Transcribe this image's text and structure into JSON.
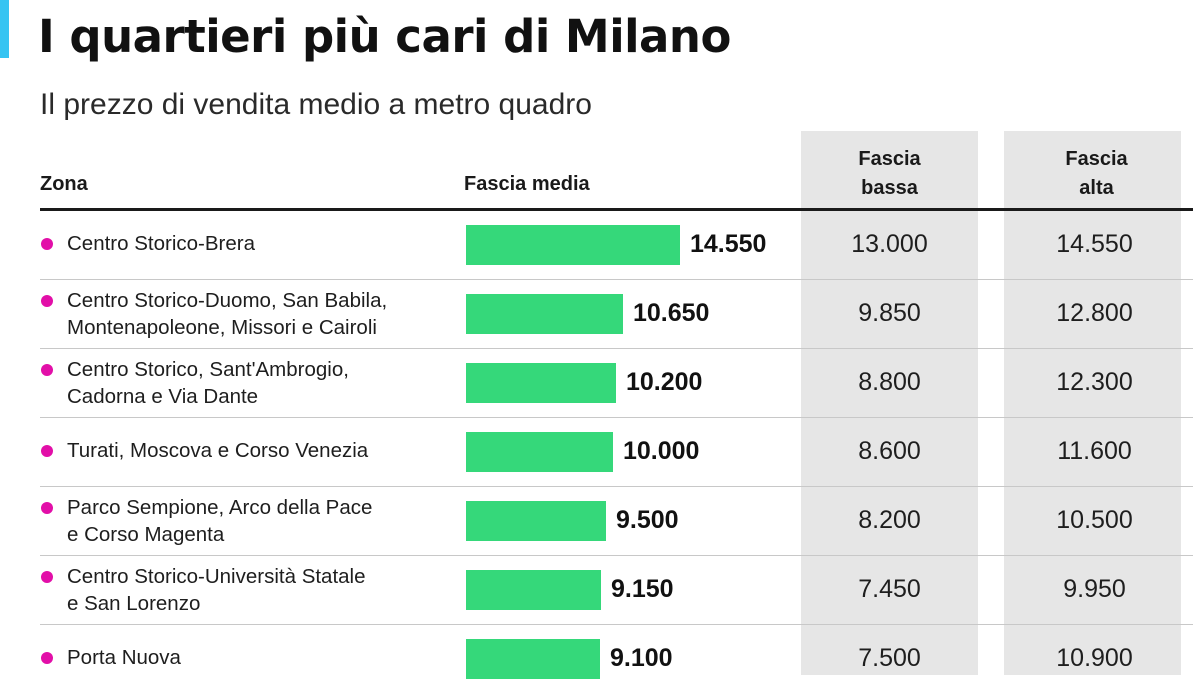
{
  "title": "I quartieri più cari di Milano",
  "subtitle": "Il prezzo di vendita medio a metro quadro",
  "colors": {
    "accent": "#35c4f2",
    "bar": "#35d87a",
    "dot": "#e20fa8",
    "column_bg": "#e6e6e6"
  },
  "headers": {
    "zona": "Zona",
    "media": "Fascia media",
    "bassa_1": "Fascia",
    "bassa_2": "bassa",
    "alta_1": "Fascia",
    "alta_2": "alta"
  },
  "chart_data": {
    "type": "bar",
    "orientation": "horizontal",
    "xlim": [
      0,
      15000
    ],
    "categories": [
      "Centro Storico-Brera",
      "Centro Storico-Duomo, San Babila, Montenapoleone, Missori e Cairoli",
      "Centro Storico, Sant'Ambrogio, Cadorna e Via Dante",
      "Turati, Moscova e Corso Venezia",
      "Parco Sempione, Arco della Pace e Corso Magenta",
      "Centro Storico-Università Statale e San Lorenzo",
      "Porta Nuova"
    ],
    "values": [
      14550,
      10650,
      10200,
      10000,
      9500,
      9150,
      9100
    ],
    "rows": [
      {
        "lines": [
          "Centro Storico-Brera"
        ],
        "media": 14550,
        "media_label": "14.550",
        "bassa": "13.000",
        "alta": "14.550"
      },
      {
        "lines": [
          "Centro Storico-Duomo, San Babila,",
          "Montenapoleone, Missori e Cairoli"
        ],
        "media": 10650,
        "media_label": "10.650",
        "bassa": "9.850",
        "alta": "12.800"
      },
      {
        "lines": [
          "Centro Storico, Sant'Ambrogio,",
          "Cadorna e Via Dante"
        ],
        "media": 10200,
        "media_label": "10.200",
        "bassa": "8.800",
        "alta": "12.300"
      },
      {
        "lines": [
          "Turati, Moscova e Corso Venezia"
        ],
        "media": 10000,
        "media_label": "10.000",
        "bassa": "8.600",
        "alta": "11.600"
      },
      {
        "lines": [
          "Parco Sempione, Arco della Pace",
          "e Corso Magenta"
        ],
        "media": 9500,
        "media_label": "9.500",
        "bassa": "8.200",
        "alta": "10.500"
      },
      {
        "lines": [
          "Centro Storico-Università Statale",
          "e San Lorenzo"
        ],
        "media": 9150,
        "media_label": "9.150",
        "bassa": "7.450",
        "alta": "9.950"
      },
      {
        "lines": [
          "Porta Nuova"
        ],
        "media": 9100,
        "media_label": "9.100",
        "bassa": "7.500",
        "alta": "10.900"
      }
    ]
  }
}
